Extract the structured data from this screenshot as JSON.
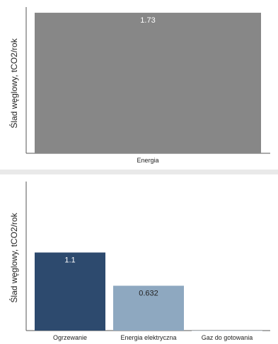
{
  "charts": {
    "top": {
      "bar_color": "#878787",
      "chart_data": {
        "type": "bar",
        "categories": [
          "Energia"
        ],
        "values": [
          1.73
        ],
        "data_labels": [
          "1.73"
        ],
        "ylabel": "Ślad węglowy, tCO2/rok",
        "xlabel": "",
        "ylim": [
          0,
          1.8
        ],
        "grid": false
      }
    },
    "bottom": {
      "bar_colors": [
        "#2d4a6e",
        "#8ea8c0",
        "#d3dde7"
      ],
      "chart_data": {
        "type": "bar",
        "categories": [
          "Ogrzewanie",
          "Energia elektryczna",
          "Gaz do gotowania"
        ],
        "values": [
          1.1,
          0.632,
          0
        ],
        "data_labels": [
          "1.1",
          "0.632",
          ""
        ],
        "ylabel": "Ślad węglowy, tCO2/rok",
        "xlabel": "",
        "ylim": [
          0,
          2.1
        ],
        "grid": false
      }
    }
  }
}
